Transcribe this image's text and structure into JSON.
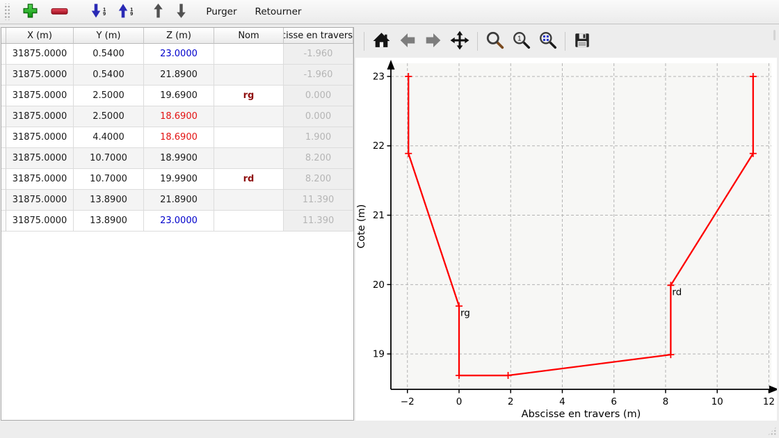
{
  "toolbar": {
    "purger_label": "Purger",
    "retourner_label": "Retourner",
    "sort_digit_top": "1",
    "sort_digit_bottom": "9"
  },
  "table": {
    "headers": [
      "X (m)",
      "Y (m)",
      "Z (m)",
      "Nom",
      "Abscisse en travers"
    ],
    "rows": [
      {
        "x": "31875.0000",
        "y": "0.5400",
        "z": "23.0000",
        "z_color": "blue",
        "nom": "",
        "abscisse": "-1.960"
      },
      {
        "x": "31875.0000",
        "y": "0.5400",
        "z": "21.8900",
        "z_color": "black",
        "nom": "",
        "abscisse": "-1.960"
      },
      {
        "x": "31875.0000",
        "y": "2.5000",
        "z": "19.6900",
        "z_color": "black",
        "nom": "rg",
        "abscisse": "0.000"
      },
      {
        "x": "31875.0000",
        "y": "2.5000",
        "z": "18.6900",
        "z_color": "red",
        "nom": "",
        "abscisse": "0.000"
      },
      {
        "x": "31875.0000",
        "y": "4.4000",
        "z": "18.6900",
        "z_color": "red",
        "nom": "",
        "abscisse": "1.900"
      },
      {
        "x": "31875.0000",
        "y": "10.7000",
        "z": "18.9900",
        "z_color": "black",
        "nom": "",
        "abscisse": "8.200"
      },
      {
        "x": "31875.0000",
        "y": "10.7000",
        "z": "19.9900",
        "z_color": "black",
        "nom": "rd",
        "abscisse": "8.200"
      },
      {
        "x": "31875.0000",
        "y": "13.8900",
        "z": "21.8900",
        "z_color": "black",
        "nom": "",
        "abscisse": "11.390"
      },
      {
        "x": "31875.0000",
        "y": "13.8900",
        "z": "23.0000",
        "z_color": "blue",
        "nom": "",
        "abscisse": "11.390"
      }
    ]
  },
  "chart_data": {
    "type": "line",
    "xlabel": "Abscisse en travers (m)",
    "ylabel": "Cote (m)",
    "x": [
      -1.96,
      -1.96,
      0,
      0,
      1.9,
      8.2,
      8.2,
      11.39,
      11.39
    ],
    "y": [
      23,
      21.89,
      19.69,
      18.69,
      18.69,
      18.99,
      19.99,
      21.89,
      23
    ],
    "point_labels": [
      {
        "text": "rg",
        "x": 0,
        "y": 19.69
      },
      {
        "text": "rd",
        "x": 8.2,
        "y": 19.99
      }
    ],
    "xticks": [
      -2,
      0,
      2,
      4,
      6,
      8,
      10,
      12
    ],
    "yticks": [
      19,
      20,
      21,
      22,
      23
    ],
    "xlim": [
      -2.64,
      12.42
    ],
    "ylim": [
      18.49,
      23.24
    ],
    "grid": true,
    "legend": "none",
    "line_color": "#fe0000",
    "marker": "+",
    "colors": {
      "grid": "#b3b3b3",
      "axis": "#000000",
      "plot_bg": "#f7f7f5"
    }
  }
}
